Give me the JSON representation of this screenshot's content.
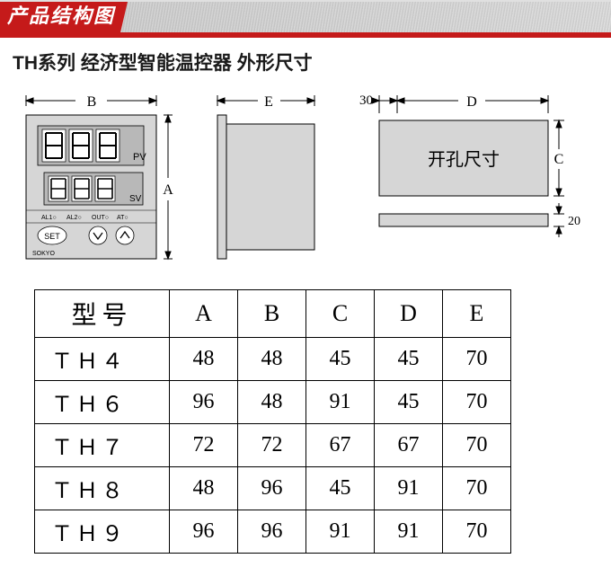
{
  "header": {
    "title": "产品结构图",
    "title_bg": "#c51a1a",
    "title_color": "#ffffff",
    "bar_bg": "#d0d0d0",
    "underline_color": "#c51a1a"
  },
  "subtitle": "TH系列 经济型智能温控器 外形尺寸",
  "front_panel": {
    "width_label": "B",
    "height_label": "A",
    "pv_label": "PV",
    "sv_label": "SV",
    "indicators": [
      "AL1○",
      "AL2○",
      "OUT○",
      "AT○"
    ],
    "set_button": "SET",
    "brand": "SOKYO",
    "panel_fill": "#d6d6d6",
    "digit_fill": "#ffffff",
    "digit_stroke": "#000000"
  },
  "side_panel": {
    "depth_label": "E",
    "body_fill": "#d6d6d6"
  },
  "cutout": {
    "offset_label": "30",
    "width_label": "D",
    "height_label": "C",
    "thickness_label": "20",
    "label": "开孔尺寸",
    "rect_fill": "#d6d6d6"
  },
  "table": {
    "headers": [
      "型号",
      "A",
      "B",
      "C",
      "D",
      "E"
    ],
    "rows": [
      [
        "ＴＨ４",
        "48",
        "48",
        "45",
        "45",
        "70"
      ],
      [
        "ＴＨ６",
        "96",
        "48",
        "91",
        "45",
        "70"
      ],
      [
        "ＴＨ７",
        "72",
        "72",
        "67",
        "67",
        "70"
      ],
      [
        "ＴＨ８",
        "48",
        "96",
        "45",
        "91",
        "70"
      ],
      [
        "ＴＨ９",
        "96",
        "96",
        "91",
        "91",
        "70"
      ]
    ],
    "border_color": "#000000",
    "font_size_pt": 18
  },
  "colors": {
    "text": "#1a1a1a",
    "bg": "#ffffff",
    "stroke": "#000000"
  }
}
